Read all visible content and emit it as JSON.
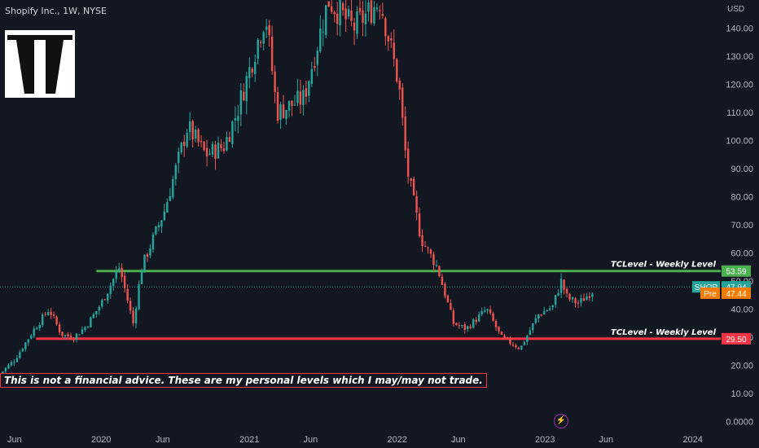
{
  "header": {
    "title": "Shopify Inc., 1W, NYSE"
  },
  "disclaimer": "This is not a financial advice. These are my personal levels which I may/may not trade.",
  "colors": {
    "background": "#131722",
    "up": "#26a69a",
    "down": "#ef5350",
    "support_line": "#f23645",
    "resistance_line": "#4caf50",
    "price_badge": "#26a69a",
    "pre_badge": "#f57c00",
    "flash_icon": "#9c27b0"
  },
  "icons": {
    "logo": "tc-logo-icon",
    "flash": "lightning-icon"
  },
  "chart_data": {
    "type": "candlestick",
    "currency_label": "USD",
    "y_ticks": [
      "0.0000",
      "10.00",
      "20.00",
      "30.00",
      "40.00",
      "50.00",
      "60.00",
      "70.00",
      "80.00",
      "90.00",
      "100.00",
      "110.00",
      "120.00",
      "130.00",
      "140.00"
    ],
    "y_tick_values": [
      0,
      10,
      20,
      30,
      40,
      50,
      60,
      70,
      80,
      90,
      100,
      110,
      120,
      130,
      140
    ],
    "x_ticks": [
      "Jun",
      "2020",
      "Jun",
      "2021",
      "Jun",
      "2022",
      "Jun",
      "2023",
      "Jun",
      "2024"
    ],
    "x_tick_values": [
      "2019-06-01",
      "2020-01-01",
      "2020-06-01",
      "2021-01-01",
      "2021-06-01",
      "2022-01-01",
      "2022-06-01",
      "2023-01-01",
      "2023-06-01",
      "2024-01-01"
    ],
    "x_range": [
      "2019-04-26",
      "2024-03-10"
    ],
    "y_range": [
      -3,
      150
    ],
    "levels": [
      {
        "label": "TCLevel - Weekly Level",
        "value": "53.59",
        "value_num": 53.59,
        "color": "#4caf50",
        "start": "2019-12-20"
      },
      {
        "label": "TCLevel - Weekly Level",
        "value": "29.50",
        "value_num": 29.5,
        "color": "#f23645",
        "start": "2019-07-24"
      }
    ],
    "price_badges": [
      {
        "symbol": "SHOP",
        "value": "47.94",
        "value_num": 47.94,
        "color": "#26a69a"
      },
      {
        "symbol": "Pre",
        "value": "47.44",
        "value_num": 47.44,
        "color": "#f57c00"
      }
    ],
    "keypoints": [
      {
        "date": "2019-04-26",
        "close": 17
      },
      {
        "date": "2019-06-01",
        "close": 22
      },
      {
        "date": "2019-07-20",
        "close": 33
      },
      {
        "date": "2019-08-25",
        "close": 40
      },
      {
        "date": "2019-09-25",
        "close": 31
      },
      {
        "date": "2019-10-25",
        "close": 30
      },
      {
        "date": "2019-11-25",
        "close": 34
      },
      {
        "date": "2020-01-01",
        "close": 42
      },
      {
        "date": "2020-02-15",
        "close": 55
      },
      {
        "date": "2020-03-20",
        "close": 35
      },
      {
        "date": "2020-04-10",
        "close": 55
      },
      {
        "date": "2020-06-05",
        "close": 75
      },
      {
        "date": "2020-08-01",
        "close": 105
      },
      {
        "date": "2020-09-15",
        "close": 95
      },
      {
        "date": "2020-10-30",
        "close": 98
      },
      {
        "date": "2020-12-01",
        "close": 110
      },
      {
        "date": "2021-02-10",
        "close": 145
      },
      {
        "date": "2021-03-10",
        "close": 110
      },
      {
        "date": "2021-05-15",
        "close": 115
      },
      {
        "date": "2021-07-15",
        "close": 150
      },
      {
        "date": "2021-09-15",
        "close": 140
      },
      {
        "date": "2021-11-20",
        "close": 150
      },
      {
        "date": "2022-01-05",
        "close": 120
      },
      {
        "date": "2022-01-25",
        "close": 90
      },
      {
        "date": "2022-03-01",
        "close": 65
      },
      {
        "date": "2022-04-10",
        "close": 55
      },
      {
        "date": "2022-05-20",
        "close": 35
      },
      {
        "date": "2022-06-20",
        "close": 33
      },
      {
        "date": "2022-08-10",
        "close": 40
      },
      {
        "date": "2022-09-15",
        "close": 30
      },
      {
        "date": "2022-11-01",
        "close": 26
      },
      {
        "date": "2022-12-15",
        "close": 38
      },
      {
        "date": "2023-01-20",
        "close": 41
      },
      {
        "date": "2023-02-10",
        "close": 50
      },
      {
        "date": "2023-02-25",
        "close": 44
      },
      {
        "date": "2023-03-25",
        "close": 42
      },
      {
        "date": "2023-05-01",
        "close": 47
      }
    ]
  }
}
